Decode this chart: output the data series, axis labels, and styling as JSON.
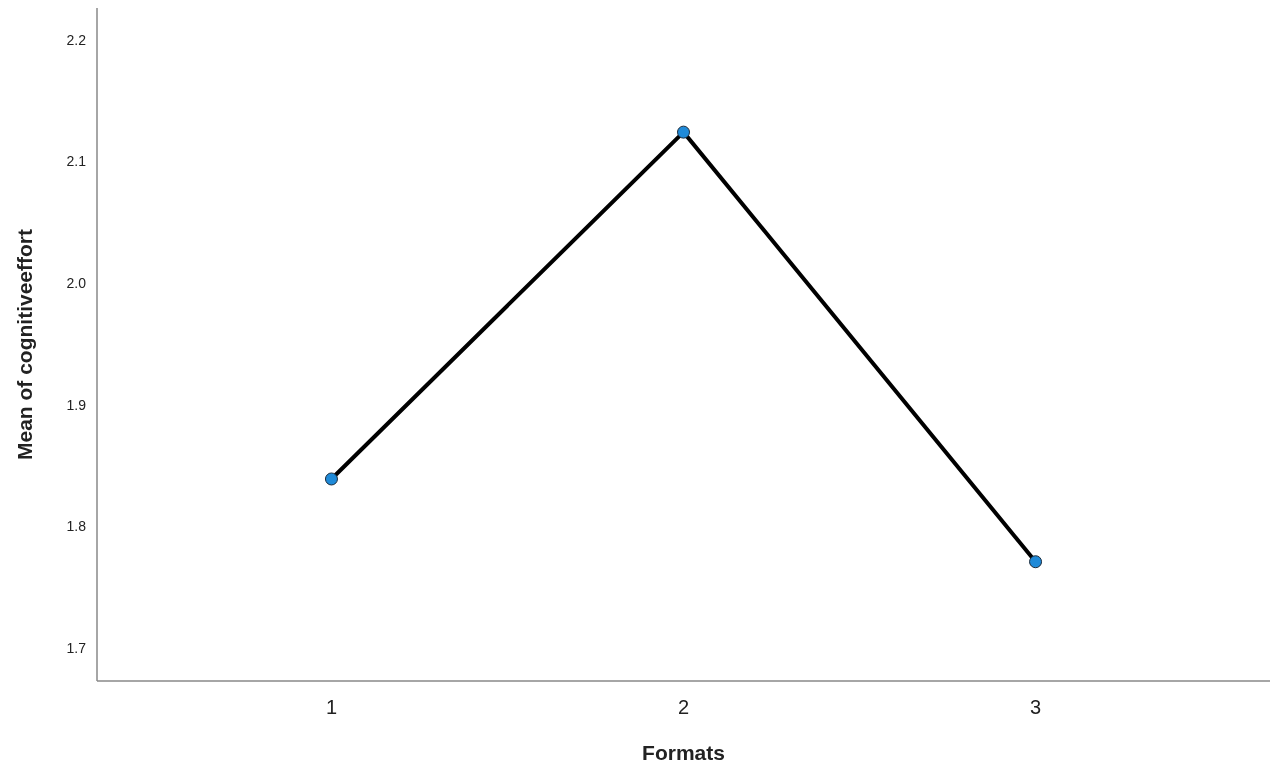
{
  "chart_data": {
    "type": "line",
    "xlabel": "Formats",
    "ylabel": "Mean of cognitiveeffort",
    "categories": [
      "1",
      "2",
      "3"
    ],
    "series": [
      {
        "color": "#000000",
        "values": [
          1.839,
          2.124,
          1.771
        ]
      }
    ],
    "ylim": [
      1.673,
      2.226
    ],
    "yticks": [
      1.7,
      1.8,
      1.9,
      {
        "value": 2,
        "label": "2.0"
      },
      2.1,
      2.2
    ],
    "grid": false,
    "marker": "circle",
    "line_style": "solid"
  }
}
